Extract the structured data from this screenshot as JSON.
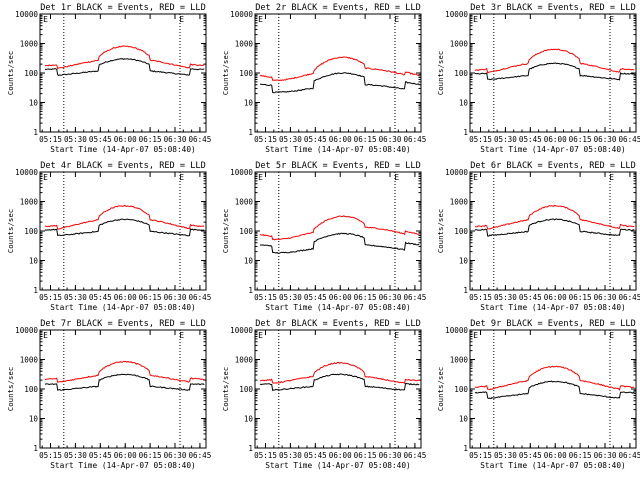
{
  "figure": {
    "background": "#ffffff",
    "axis_color": "#000000",
    "events_color": "#000000",
    "lld_color": "#ff0000"
  },
  "chart_data": [
    {
      "type": "line",
      "detector": "1r",
      "title": "Det 1r BLACK = Events, RED = LLD",
      "xlabel": "Start Time (14-Apr-07 05:08:40)",
      "ylabel": "Counts/sec",
      "y_scale": "log",
      "ylim": [
        1,
        10000
      ],
      "xlim": [
        "05:08:40",
        "06:48:40"
      ],
      "x_tick_labels": [
        "05:15",
        "05:30",
        "05:45",
        "06:00",
        "06:15",
        "06:30",
        "06:45"
      ],
      "y_tick_labels": [
        "1",
        "10",
        "100",
        "1000",
        "10000"
      ],
      "vlines": [
        "05:23",
        "06:33"
      ],
      "markers": [
        {
          "label": "E",
          "x": "05:12"
        },
        {
          "label": "E",
          "x": "06:34"
        }
      ],
      "series": [
        {
          "name": "Events",
          "color": "#000000",
          "base": 170,
          "dip": 0.55,
          "amp": 0.22,
          "phase": 0.25
        },
        {
          "name": "LLD",
          "color": "#ff0000",
          "base": 300,
          "dip": 0.7,
          "amp": 0.4,
          "phase": 0.25
        }
      ]
    },
    {
      "type": "line",
      "detector": "2r",
      "title": "Det 2r BLACK = Events, RED = LLD",
      "xlabel": "Start Time (14-Apr-07 05:08:40)",
      "ylabel": "Counts/sec",
      "y_scale": "log",
      "ylim": [
        1,
        10000
      ],
      "xlim": [
        "05:08:40",
        "06:48:40"
      ],
      "x_tick_labels": [
        "05:15",
        "05:30",
        "05:45",
        "06:00",
        "06:15",
        "06:30",
        "06:45"
      ],
      "y_tick_labels": [
        "1",
        "10",
        "100",
        "1000",
        "10000"
      ],
      "vlines": [
        "05:23",
        "06:33"
      ],
      "markers": [
        {
          "label": "E",
          "x": "05:12"
        },
        {
          "label": "E",
          "x": "06:34"
        }
      ],
      "series": [
        {
          "name": "Events",
          "color": "#000000",
          "base": 55,
          "dip": 0.5,
          "amp": 0.3,
          "phase": 0.35
        },
        {
          "name": "LLD",
          "color": "#ff0000",
          "base": 130,
          "dip": 0.75,
          "amp": 0.45,
          "phase": 0.35
        }
      ]
    },
    {
      "type": "line",
      "detector": "3r",
      "title": "Det 3r BLACK = Events, RED = LLD",
      "xlabel": "Start Time (14-Apr-07 05:08:40)",
      "ylabel": "Counts/sec",
      "y_scale": "log",
      "ylim": [
        1,
        10000
      ],
      "xlim": [
        "05:08:40",
        "06:48:40"
      ],
      "x_tick_labels": [
        "05:15",
        "05:30",
        "05:45",
        "06:00",
        "06:15",
        "06:30",
        "06:45"
      ],
      "y_tick_labels": [
        "1",
        "10",
        "100",
        "1000",
        "10000"
      ],
      "vlines": [
        "05:23",
        "06:33"
      ],
      "markers": [
        {
          "label": "E",
          "x": "05:12"
        },
        {
          "label": "E",
          "x": "06:34"
        }
      ],
      "series": [
        {
          "name": "Events",
          "color": "#000000",
          "base": 120,
          "dip": 0.55,
          "amp": 0.22,
          "phase": 0.25
        },
        {
          "name": "LLD",
          "color": "#ff0000",
          "base": 230,
          "dip": 0.7,
          "amp": 0.45,
          "phase": 0.25
        }
      ]
    },
    {
      "type": "line",
      "detector": "4r",
      "title": "Det 4r BLACK = Events, RED = LLD",
      "xlabel": "Start Time (14-Apr-07 05:08:40)",
      "ylabel": "Counts/sec",
      "y_scale": "log",
      "ylim": [
        1,
        10000
      ],
      "xlim": [
        "05:08:40",
        "06:48:40"
      ],
      "x_tick_labels": [
        "05:15",
        "05:30",
        "05:45",
        "06:00",
        "06:15",
        "06:30",
        "06:45"
      ],
      "y_tick_labels": [
        "1",
        "10",
        "100",
        "1000",
        "10000"
      ],
      "vlines": [
        "05:23",
        "06:33"
      ],
      "markers": [
        {
          "label": "E",
          "x": "05:12"
        },
        {
          "label": "E",
          "x": "06:34"
        }
      ],
      "series": [
        {
          "name": "Events",
          "color": "#000000",
          "base": 140,
          "dip": 0.55,
          "amp": 0.22,
          "phase": 0.25
        },
        {
          "name": "LLD",
          "color": "#ff0000",
          "base": 260,
          "dip": 0.7,
          "amp": 0.45,
          "phase": 0.25
        }
      ]
    },
    {
      "type": "line",
      "detector": "5r",
      "title": "Det 5r BLACK = Events, RED = LLD",
      "xlabel": "Start Time (14-Apr-07 05:08:40)",
      "ylabel": "Counts/sec",
      "y_scale": "log",
      "ylim": [
        1,
        10000
      ],
      "xlim": [
        "05:08:40",
        "06:48:40"
      ],
      "x_tick_labels": [
        "05:15",
        "05:30",
        "05:45",
        "06:00",
        "06:15",
        "06:30",
        "06:45"
      ],
      "y_tick_labels": [
        "1",
        "10",
        "100",
        "1000",
        "10000"
      ],
      "vlines": [
        "05:23",
        "06:33"
      ],
      "markers": [
        {
          "label": "E",
          "x": "05:12"
        },
        {
          "label": "E",
          "x": "06:34"
        }
      ],
      "series": [
        {
          "name": "Events",
          "color": "#000000",
          "base": 45,
          "dip": 0.5,
          "amp": 0.3,
          "phase": 0.35
        },
        {
          "name": "LLD",
          "color": "#ff0000",
          "base": 120,
          "dip": 0.75,
          "amp": 0.45,
          "phase": 0.35
        }
      ]
    },
    {
      "type": "line",
      "detector": "6r",
      "title": "Det 6r BLACK = Events, RED = LLD",
      "xlabel": "Start Time (14-Apr-07 05:08:40)",
      "ylabel": "Counts/sec",
      "y_scale": "log",
      "ylim": [
        1,
        10000
      ],
      "xlim": [
        "05:08:40",
        "06:48:40"
      ],
      "x_tick_labels": [
        "05:15",
        "05:30",
        "05:45",
        "06:00",
        "06:15",
        "06:30",
        "06:45"
      ],
      "y_tick_labels": [
        "1",
        "10",
        "100",
        "1000",
        "10000"
      ],
      "vlines": [
        "05:23",
        "06:33"
      ],
      "markers": [
        {
          "label": "E",
          "x": "05:12"
        },
        {
          "label": "E",
          "x": "06:34"
        }
      ],
      "series": [
        {
          "name": "Events",
          "color": "#000000",
          "base": 140,
          "dip": 0.55,
          "amp": 0.22,
          "phase": 0.25
        },
        {
          "name": "LLD",
          "color": "#ff0000",
          "base": 260,
          "dip": 0.7,
          "amp": 0.45,
          "phase": 0.25
        }
      ]
    },
    {
      "type": "line",
      "detector": "7r",
      "title": "Det 7r BLACK = Events, RED = LLD",
      "xlabel": "Start Time (14-Apr-07 05:08:40)",
      "ylabel": "Counts/sec",
      "y_scale": "log",
      "ylim": [
        1,
        10000
      ],
      "xlim": [
        "05:08:40",
        "06:48:40"
      ],
      "x_tick_labels": [
        "05:15",
        "05:30",
        "05:45",
        "06:00",
        "06:15",
        "06:30",
        "06:45"
      ],
      "y_tick_labels": [
        "1",
        "10",
        "100",
        "1000",
        "10000"
      ],
      "vlines": [
        "05:23",
        "06:33"
      ],
      "markers": [
        {
          "label": "E",
          "x": "05:12"
        },
        {
          "label": "E",
          "x": "06:34"
        }
      ],
      "series": [
        {
          "name": "Events",
          "color": "#000000",
          "base": 180,
          "dip": 0.55,
          "amp": 0.2,
          "phase": 0.25
        },
        {
          "name": "LLD",
          "color": "#ff0000",
          "base": 330,
          "dip": 0.7,
          "amp": 0.35,
          "phase": 0.25
        }
      ]
    },
    {
      "type": "line",
      "detector": "8r",
      "title": "Det 8r BLACK = Events, RED = LLD",
      "xlabel": "Start Time (14-Apr-07 05:08:40)",
      "ylabel": "Counts/sec",
      "y_scale": "log",
      "ylim": [
        1,
        10000
      ],
      "xlim": [
        "05:08:40",
        "06:48:40"
      ],
      "x_tick_labels": [
        "05:15",
        "05:30",
        "05:45",
        "06:00",
        "06:15",
        "06:30",
        "06:45"
      ],
      "y_tick_labels": [
        "1",
        "10",
        "100",
        "1000",
        "10000"
      ],
      "vlines": [
        "05:23",
        "06:33"
      ],
      "markers": [
        {
          "label": "E",
          "x": "05:12"
        },
        {
          "label": "E",
          "x": "06:34"
        }
      ],
      "series": [
        {
          "name": "Events",
          "color": "#000000",
          "base": 180,
          "dip": 0.55,
          "amp": 0.2,
          "phase": 0.25
        },
        {
          "name": "LLD",
          "color": "#ff0000",
          "base": 300,
          "dip": 0.7,
          "amp": 0.35,
          "phase": 0.25
        }
      ]
    },
    {
      "type": "line",
      "detector": "9r",
      "title": "Det 9r BLACK = Events, RED = LLD",
      "xlabel": "Start Time (14-Apr-07 05:08:40)",
      "ylabel": "Counts/sec",
      "y_scale": "log",
      "ylim": [
        1,
        10000
      ],
      "xlim": [
        "05:08:40",
        "06:48:40"
      ],
      "x_tick_labels": [
        "05:15",
        "05:30",
        "05:45",
        "06:00",
        "06:15",
        "06:30",
        "06:45"
      ],
      "y_tick_labels": [
        "1",
        "10",
        "100",
        "1000",
        "10000"
      ],
      "vlines": [
        "05:23",
        "06:33"
      ],
      "markers": [
        {
          "label": "E",
          "x": "05:12"
        },
        {
          "label": "E",
          "x": "06:34"
        }
      ],
      "series": [
        {
          "name": "Events",
          "color": "#000000",
          "base": 100,
          "dip": 0.55,
          "amp": 0.25,
          "phase": 0.25
        },
        {
          "name": "LLD",
          "color": "#ff0000",
          "base": 210,
          "dip": 0.7,
          "amp": 0.45,
          "phase": 0.25
        }
      ]
    }
  ]
}
